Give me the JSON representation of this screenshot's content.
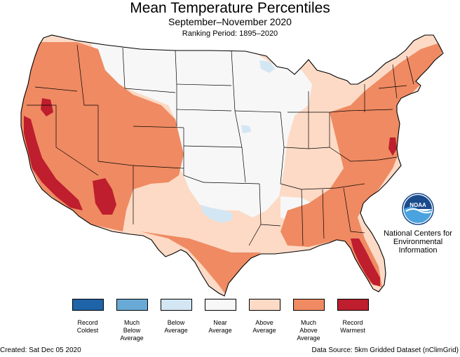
{
  "title": "Mean Temperature Percentiles",
  "subtitle": "September–November 2020",
  "ranking_period": "Ranking Period: 1895–2020",
  "organization": {
    "logo_text": "NOAA",
    "line1": "National Centers for",
    "line2": "Environmental",
    "line3": "Information"
  },
  "legend": [
    {
      "line1": "Record",
      "line2": "Coldest",
      "line3": "",
      "color": "#1f63a8"
    },
    {
      "line1": "Much",
      "line2": "Below",
      "line3": "Average",
      "color": "#69a9d5"
    },
    {
      "line1": "Below",
      "line2": "Average",
      "line3": "",
      "color": "#d3e6f3"
    },
    {
      "line1": "Near",
      "line2": "Average",
      "line3": "",
      "color": "#f7f7f7"
    },
    {
      "line1": "Above",
      "line2": "Average",
      "line3": "",
      "color": "#fcdac6"
    },
    {
      "line1": "Much",
      "line2": "Above",
      "line3": "Average",
      "color": "#ef8a62"
    },
    {
      "line1": "Record",
      "line2": "Warmest",
      "line3": "",
      "color": "#be1e2d"
    }
  ],
  "footer": {
    "created": "Created: Sat Dec 05 2020",
    "source": "Data Source: 5km Gridded Dataset (nClimGrid)"
  }
}
